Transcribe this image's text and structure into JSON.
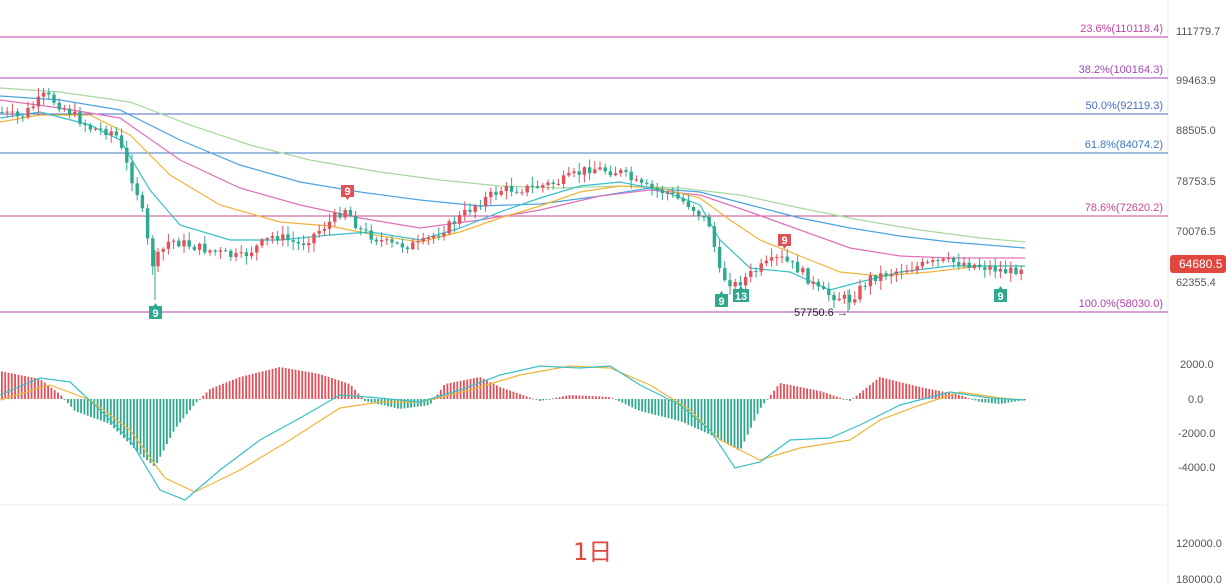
{
  "chart_data": {
    "type": "candlestick",
    "timeframe_label": "1日",
    "colors": {
      "up": "#e0525a",
      "down": "#2ea98e",
      "ma_teal": "#36c0c8",
      "ma_orange": "#f0b43a",
      "ma_pink": "#e070b8",
      "ma_blue": "#4aa3e0",
      "ma_green": "#a8d8a0",
      "macd_dif": "#36c0c8",
      "macd_dea": "#f0b43a"
    },
    "price_axis": {
      "ticks": [
        "111779.7",
        "99463.9",
        "88505.0",
        "78753.5",
        "70076.5",
        "62355.4"
      ],
      "last_price": "64680.5"
    },
    "macd_axis": {
      "ticks": [
        "2000.0",
        "0.0",
        "-2000.0",
        "-4000.0"
      ]
    },
    "volume_axis": {
      "ticks": [
        "120000.0",
        "180000.0"
      ]
    },
    "fibonacci": [
      {
        "label": "23.6%(110118.4)",
        "color": "#c040a8"
      },
      {
        "label": "38.2%(100164.3)",
        "color": "#a048b8"
      },
      {
        "label": "50.0%(92119.3)",
        "color": "#4a6cc8"
      },
      {
        "label": "61.8%(84074.2)",
        "color": "#3a78c0"
      },
      {
        "label": "78.6%(72620.2)",
        "color": "#c84890"
      },
      {
        "label": "100.0%(58030.0)",
        "color": "#b040b0"
      }
    ],
    "annotations": {
      "low_marker": "57750.6 →",
      "td_marks": [
        "9",
        "9",
        "9",
        "9",
        "13",
        "9"
      ]
    }
  }
}
